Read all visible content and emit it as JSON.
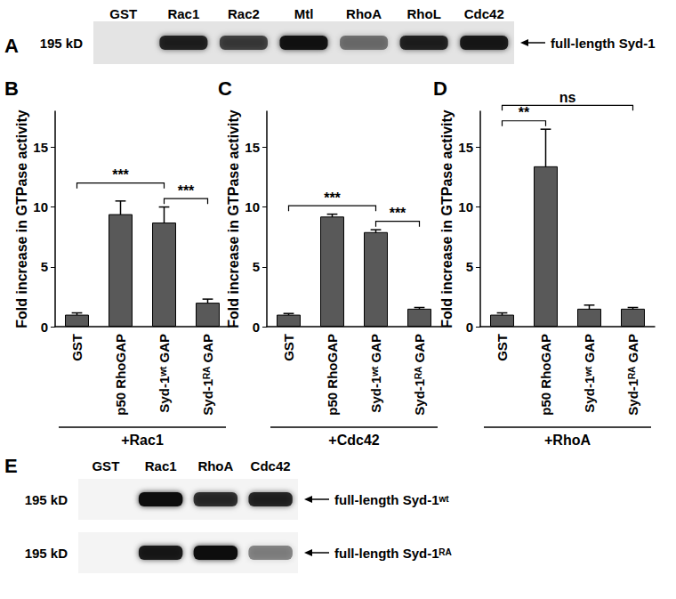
{
  "chart_data": [
    {
      "type": "bar",
      "title": "B",
      "ylabel": "Fold increase in GTPase activity",
      "xlabel": "+Rac1",
      "categories": [
        "GST",
        "p50 RhoGAP",
        "Syd-1ʷᵗ GAP",
        "Syd-1ᴿᴬ GAP"
      ],
      "values": [
        1.0,
        9.4,
        8.7,
        2.0
      ],
      "errors": [
        0.15,
        1.1,
        1.3,
        0.3
      ],
      "color": "#595959",
      "ylim": [
        0,
        18
      ],
      "yticks": [
        0,
        5,
        10,
        15
      ],
      "grid": false,
      "annotations": [
        {
          "from": 2,
          "to": 3,
          "text": "***"
        },
        {
          "from": 0,
          "to": 2,
          "text": "***"
        }
      ]
    },
    {
      "type": "bar",
      "title": "C",
      "ylabel": "Fold increase in GTPase activity",
      "xlabel": "+Cdc42",
      "categories": [
        "GST",
        "p50 RhoGAP",
        "Syd-1ʷᵗ GAP",
        "Syd-1ᴿᴬ GAP"
      ],
      "values": [
        1.0,
        9.2,
        7.9,
        1.5
      ],
      "errors": [
        0.1,
        0.2,
        0.2,
        0.1
      ],
      "color": "#595959",
      "ylim": [
        0,
        18
      ],
      "yticks": [
        0,
        5,
        10,
        15
      ],
      "grid": false,
      "annotations": [
        {
          "from": 2,
          "to": 3,
          "text": "***"
        },
        {
          "from": 0,
          "to": 2,
          "text": "***"
        }
      ]
    },
    {
      "type": "bar",
      "title": "D",
      "ylabel": "Fold increase in GTPase activity",
      "xlabel": "+RhoA",
      "categories": [
        "GST",
        "p50 RhoGAP",
        "Syd-1ʷᵗ GAP",
        "Syd-1ᴿᴬ GAP"
      ],
      "values": [
        1.0,
        13.4,
        1.5,
        1.5
      ],
      "errors": [
        0.15,
        3.1,
        0.3,
        0.1
      ],
      "color": "#595959",
      "ylim": [
        0,
        18
      ],
      "yticks": [
        0,
        5,
        10,
        15
      ],
      "grid": false,
      "annotations": [
        {
          "from": 0,
          "to": 1,
          "text": "**"
        },
        {
          "from": 0,
          "to": 3,
          "text": "ns"
        }
      ]
    }
  ],
  "blots": [
    {
      "title": "A",
      "lanes": [
        "GST",
        "Rac1",
        "Rac2",
        "Mtl",
        "RhoA",
        "RhoL",
        "Cdc42"
      ],
      "rows": [
        {
          "size": "195 kD",
          "label": "full-length Syd-1",
          "intensity": [
            0,
            0.85,
            0.7,
            0.95,
            0.5,
            0.85,
            0.9
          ]
        }
      ]
    },
    {
      "title": "E",
      "lanes": [
        "GST",
        "Rac1",
        "RhoA",
        "Cdc42"
      ],
      "rows": [
        {
          "size": "195 kD",
          "label": "full-length Syd-1ʷᵗ",
          "intensity": [
            0,
            1,
            0.8,
            0.85
          ]
        },
        {
          "size": "195 kD",
          "label": "full-length Syd-1ᴿᴬ",
          "intensity": [
            0,
            0.9,
            1,
            0.45
          ]
        }
      ]
    }
  ]
}
